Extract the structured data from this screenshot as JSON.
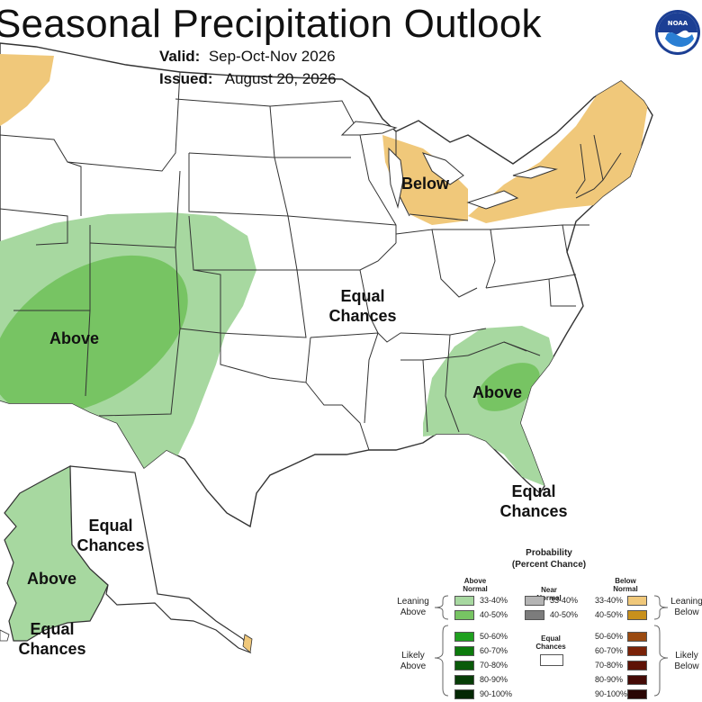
{
  "header": {
    "title": "Seasonal Precipitation Outlook",
    "valid_label": "Valid:",
    "valid_value": "Sep-Oct-Nov 2026",
    "issued_label": "Issued:",
    "issued_value": "August 20, 2026",
    "logo_text": "NOAA"
  },
  "map_labels": {
    "below_northeast": "Below",
    "above_southwest": "Above",
    "above_southeast": "Above",
    "above_alaska": "Above",
    "ec_central_1": "Equal",
    "ec_central_2": "Chances",
    "ec_florida_1": "Equal",
    "ec_florida_2": "Chances",
    "ec_alaska_north_1": "Equal",
    "ec_alaska_north_2": "Chances",
    "ec_alaska_south_1": "Equal",
    "ec_alaska_south_2": "Chances"
  },
  "colors": {
    "above_33_40": "#a7d8a0",
    "above_40_50": "#77c463",
    "below_33_40": "#f0c87a",
    "state_border": "#333333",
    "background": "#ffffff"
  },
  "legend": {
    "title_1": "Probability",
    "title_2": "(Percent Chance)",
    "above_head_1": "Above",
    "above_head_2": "Normal",
    "near_head_1": "Near",
    "near_head_2": "Normal",
    "below_head_1": "Below",
    "below_head_2": "Normal",
    "leaning_above_1": "Leaning",
    "leaning_above_2": "Above",
    "likely_above_1": "Likely",
    "likely_above_2": "Above",
    "leaning_below_1": "Leaning",
    "leaning_below_2": "Below",
    "likely_below_1": "Likely",
    "likely_below_2": "Below",
    "equal_chances_1": "Equal",
    "equal_chances_2": "Chances",
    "above_rows": [
      {
        "label": "33-40%",
        "color": "#a7d8a0"
      },
      {
        "label": "40-50%",
        "color": "#77c463"
      },
      {
        "label": "50-60%",
        "color": "#1fa01f"
      },
      {
        "label": "60-70%",
        "color": "#0c7a0c"
      },
      {
        "label": "70-80%",
        "color": "#0a5a0a"
      },
      {
        "label": "80-90%",
        "color": "#073d07"
      },
      {
        "label": "90-100%",
        "color": "#042804"
      }
    ],
    "near_rows": [
      {
        "label": "33-40%",
        "color": "#b4b4b4"
      },
      {
        "label": "40-50%",
        "color": "#7c7c7c"
      }
    ],
    "below_rows": [
      {
        "label": "33-40%",
        "color": "#f0c87a"
      },
      {
        "label": "40-50%",
        "color": "#c8901c"
      },
      {
        "label": "50-60%",
        "color": "#9a4a10"
      },
      {
        "label": "60-70%",
        "color": "#7a2208"
      },
      {
        "label": "70-80%",
        "color": "#5e1206"
      },
      {
        "label": "80-90%",
        "color": "#440a06"
      },
      {
        "label": "90-100%",
        "color": "#2a0604"
      }
    ]
  }
}
